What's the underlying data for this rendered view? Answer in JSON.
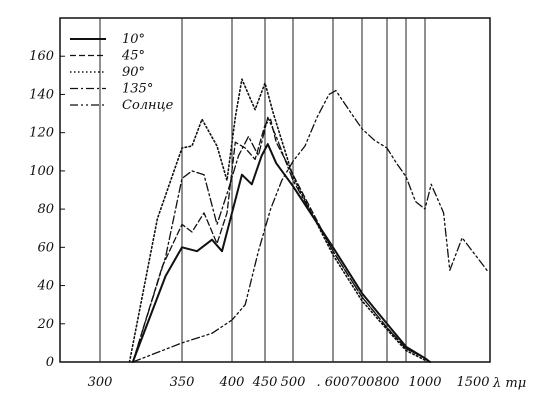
{
  "chart_data": {
    "type": "line",
    "title": "",
    "xlabel": "λ mμ",
    "ylabel": "",
    "ylim": [
      0,
      180
    ],
    "grid": "vertical lines at labeled wavelengths",
    "legend_placement": "top-left",
    "x_ticks": [
      "300",
      "350",
      "400",
      "450",
      "500",
      ". 600",
      "700",
      "800",
      "1000",
      "1500"
    ],
    "y_ticks": [
      "0",
      "20",
      "40",
      "60",
      "80",
      "100",
      "120",
      "140",
      "160"
    ],
    "series": [
      {
        "name": "10°",
        "style": "solid",
        "points": [
          [
            320,
            0
          ],
          [
            340,
            45
          ],
          [
            350,
            60
          ],
          [
            365,
            58
          ],
          [
            380,
            64
          ],
          [
            390,
            58
          ],
          [
            400,
            78
          ],
          [
            415,
            98
          ],
          [
            430,
            93
          ],
          [
            445,
            108
          ],
          [
            455,
            114
          ],
          [
            470,
            104
          ],
          [
            500,
            92
          ],
          [
            600,
            60
          ],
          [
            700,
            36
          ],
          [
            800,
            20
          ],
          [
            900,
            8
          ],
          [
            1000,
            2
          ],
          [
            1040,
            0
          ]
        ]
      },
      {
        "name": "45°",
        "style": "dashed",
        "points": [
          [
            320,
            0
          ],
          [
            338,
            50
          ],
          [
            350,
            72
          ],
          [
            360,
            68
          ],
          [
            372,
            78
          ],
          [
            385,
            62
          ],
          [
            395,
            78
          ],
          [
            405,
            115
          ],
          [
            420,
            112
          ],
          [
            435,
            106
          ],
          [
            450,
            124
          ],
          [
            460,
            127
          ],
          [
            470,
            115
          ],
          [
            500,
            98
          ],
          [
            600,
            58
          ],
          [
            700,
            34
          ],
          [
            800,
            18
          ],
          [
            900,
            7
          ],
          [
            1000,
            2
          ],
          [
            1045,
            0
          ]
        ]
      },
      {
        "name": "90°",
        "style": "dotted",
        "points": [
          [
            318,
            0
          ],
          [
            335,
            75
          ],
          [
            350,
            112
          ],
          [
            360,
            113
          ],
          [
            370,
            127
          ],
          [
            385,
            113
          ],
          [
            395,
            95
          ],
          [
            405,
            128
          ],
          [
            415,
            148
          ],
          [
            425,
            140
          ],
          [
            435,
            132
          ],
          [
            450,
            146
          ],
          [
            465,
            130
          ],
          [
            500,
            97
          ],
          [
            600,
            56
          ],
          [
            700,
            32
          ],
          [
            800,
            17
          ],
          [
            900,
            6
          ],
          [
            1000,
            1
          ],
          [
            1040,
            0
          ]
        ]
      },
      {
        "name": "135°",
        "style": "dashdot",
        "points": [
          [
            320,
            0
          ],
          [
            340,
            55
          ],
          [
            350,
            96
          ],
          [
            360,
            100
          ],
          [
            372,
            98
          ],
          [
            385,
            72
          ],
          [
            395,
            88
          ],
          [
            410,
            108
          ],
          [
            425,
            118
          ],
          [
            440,
            108
          ],
          [
            455,
            128
          ],
          [
            470,
            118
          ],
          [
            500,
            95
          ],
          [
            600,
            58
          ],
          [
            700,
            34
          ],
          [
            800,
            18
          ],
          [
            900,
            7
          ],
          [
            1000,
            2
          ],
          [
            1045,
            0
          ]
        ]
      },
      {
        "name": "Солнце",
        "style": "dashdotdot",
        "points": [
          [
            320,
            0
          ],
          [
            350,
            10
          ],
          [
            380,
            15
          ],
          [
            400,
            22
          ],
          [
            420,
            30
          ],
          [
            440,
            58
          ],
          [
            460,
            80
          ],
          [
            480,
            95
          ],
          [
            500,
            105
          ],
          [
            530,
            113
          ],
          [
            560,
            128
          ],
          [
            590,
            140
          ],
          [
            610,
            142
          ],
          [
            650,
            133
          ],
          [
            700,
            122
          ],
          [
            750,
            116
          ],
          [
            800,
            112
          ],
          [
            850,
            104
          ],
          [
            900,
            97
          ],
          [
            950,
            84
          ],
          [
            1000,
            80
          ],
          [
            1050,
            93
          ],
          [
            1150,
            78
          ],
          [
            1200,
            48
          ],
          [
            1300,
            65
          ],
          [
            1500,
            48
          ]
        ]
      }
    ]
  }
}
